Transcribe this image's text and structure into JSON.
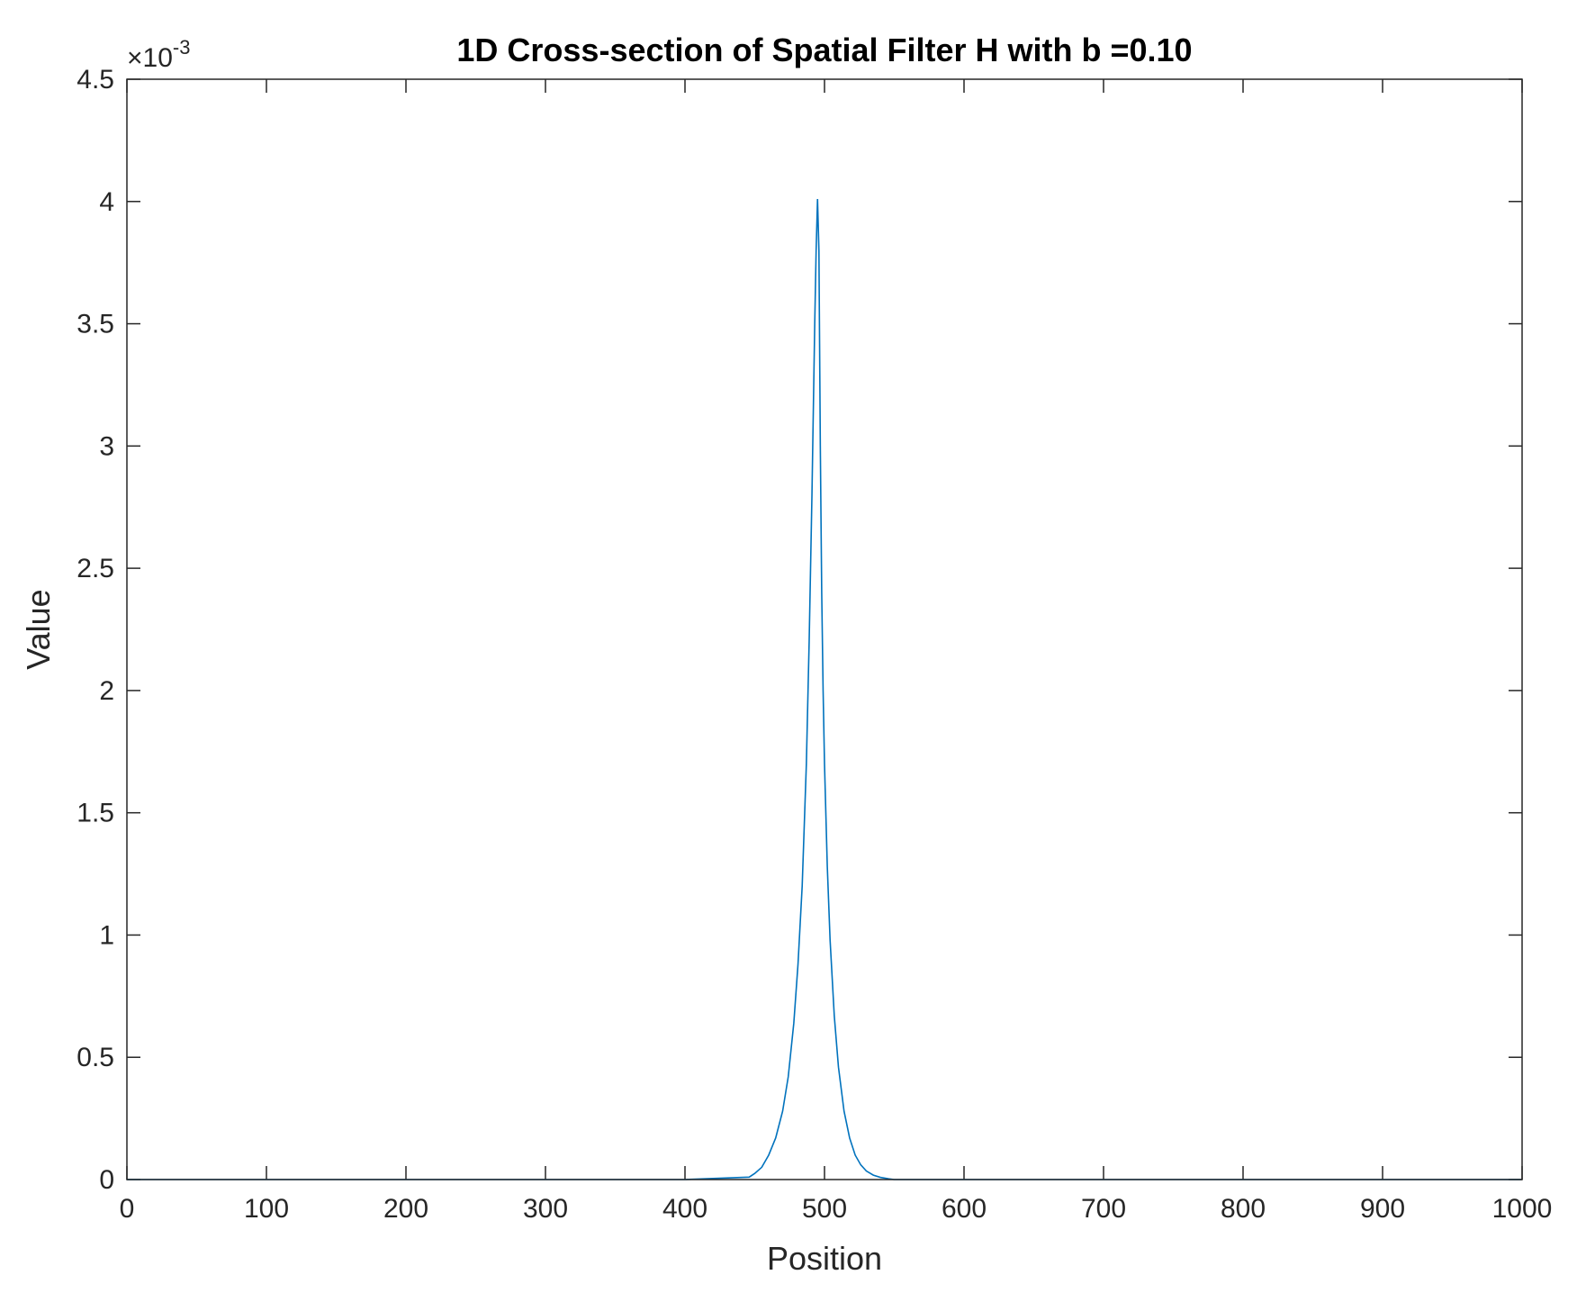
{
  "chart_data": {
    "type": "line",
    "title": "1D Cross-section of Spatial Filter H with b =0.10",
    "xlabel": "Position",
    "ylabel": "Value",
    "xlim": [
      0,
      1000
    ],
    "ylim": [
      0,
      0.0045
    ],
    "x_ticks": [
      "0",
      "100",
      "200",
      "300",
      "400",
      "500",
      "600",
      "700",
      "800",
      "900",
      "1000"
    ],
    "y_ticks": [
      "0",
      "0.5",
      "1",
      "1.5",
      "2",
      "2.5",
      "3",
      "3.5",
      "4",
      "4.5"
    ],
    "y_multiplier_base": "×10",
    "y_multiplier_exp": "-3",
    "grid": false,
    "series_color": "#0072BD",
    "series": [
      {
        "x": [
          0,
          100,
          200,
          300,
          400,
          446,
          450,
          455,
          460,
          465,
          470,
          474,
          478,
          481,
          484,
          487,
          489,
          491,
          493,
          494,
          495,
          496,
          497,
          498,
          499,
          500,
          502,
          504,
          507,
          510,
          514,
          518,
          522,
          526,
          530,
          535,
          540,
          546,
          550,
          600,
          700,
          800,
          900,
          999
        ],
        "y": [
          0,
          0,
          0,
          0,
          0,
          1e-05,
          2.5e-05,
          5e-05,
          0.0001,
          0.00017,
          0.00028,
          0.00042,
          0.00064,
          0.00088,
          0.0012,
          0.0017,
          0.0022,
          0.0028,
          0.0035,
          0.0038,
          0.00401,
          0.0038,
          0.003,
          0.0024,
          0.002,
          0.0017,
          0.00128,
          0.00098,
          0.00067,
          0.00046,
          0.00028,
          0.00017,
          0.0001,
          6e-05,
          3.5e-05,
          1.8e-05,
          9e-06,
          3e-06,
          0,
          0,
          0,
          0,
          0,
          0
        ]
      }
    ]
  }
}
